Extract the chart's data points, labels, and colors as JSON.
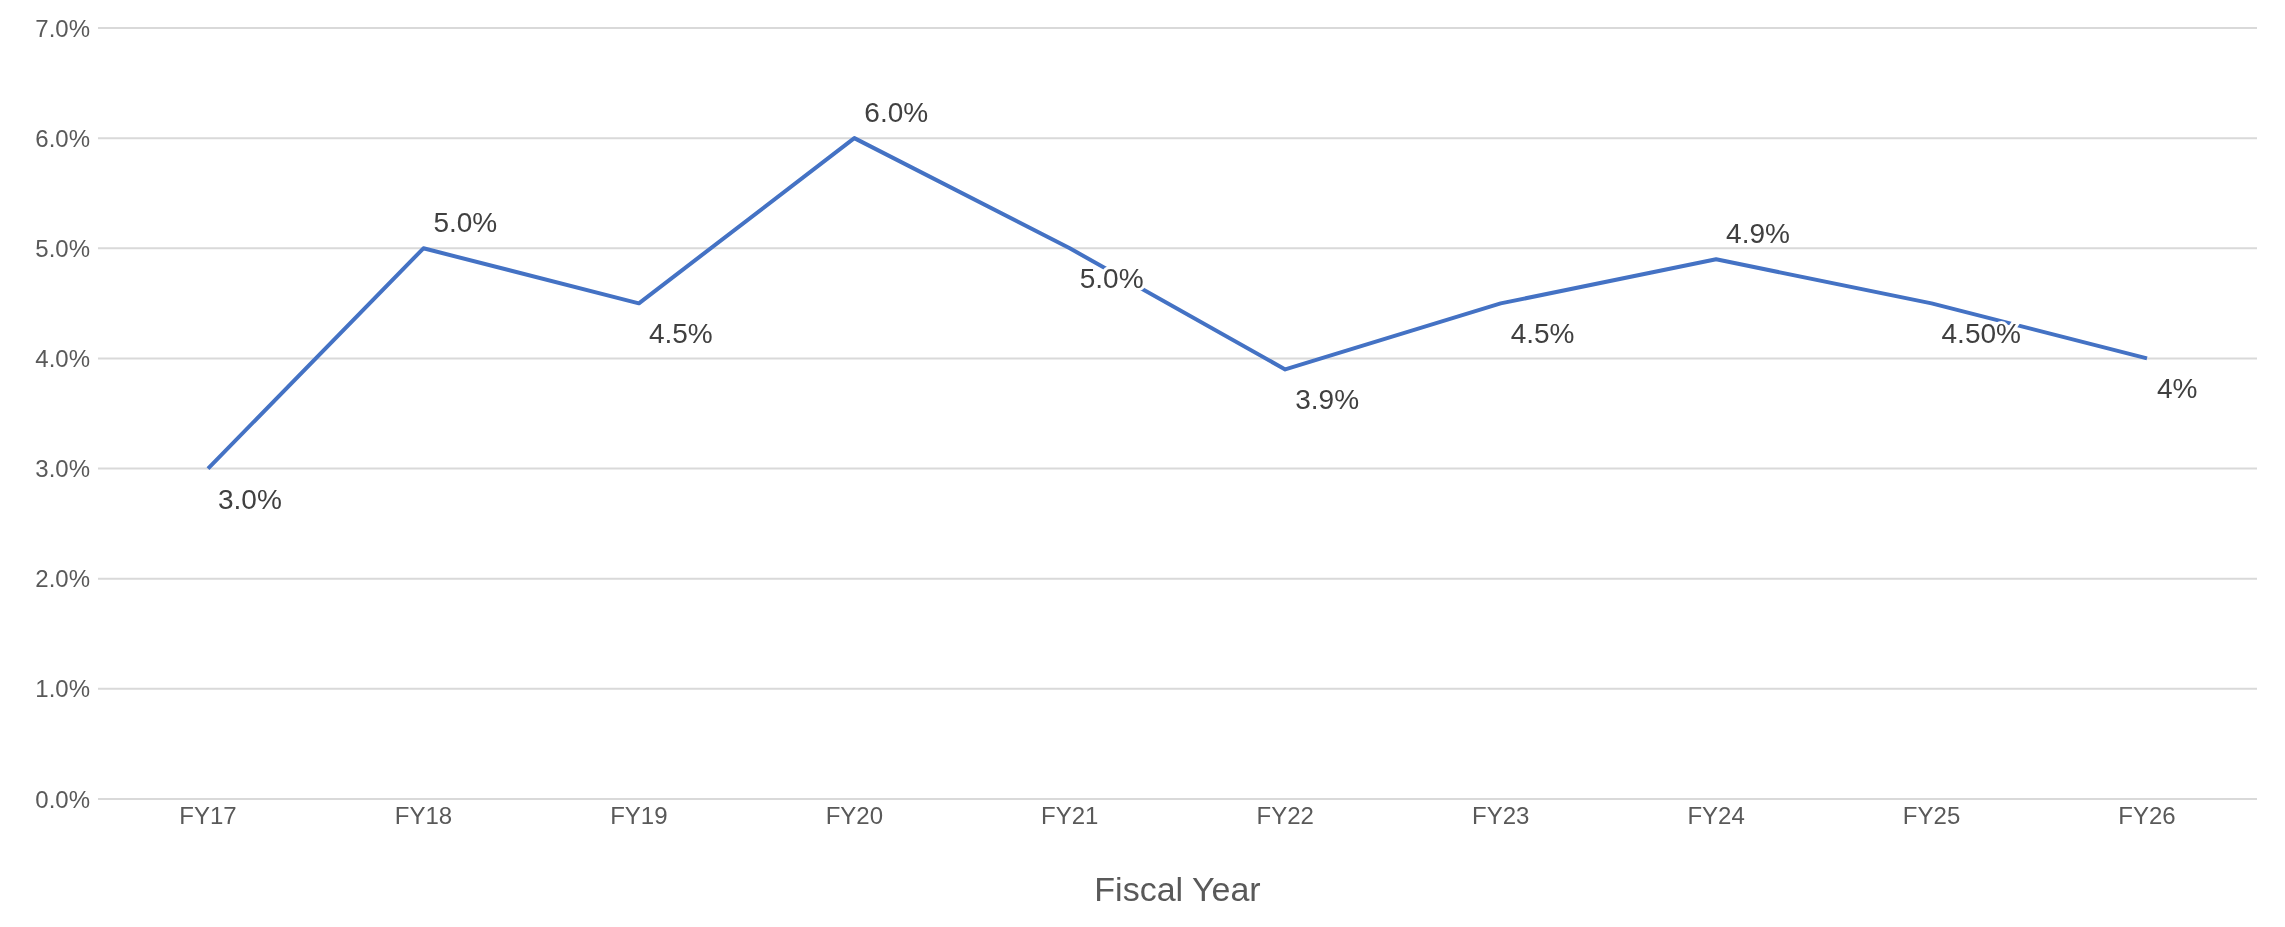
{
  "chart_data": {
    "type": "line",
    "xlabel": "Fiscal Year",
    "categories": [
      "FY17",
      "FY18",
      "FY19",
      "FY20",
      "FY21",
      "FY22",
      "FY23",
      "FY24",
      "FY25",
      "FY26"
    ],
    "values": [
      3.0,
      5.0,
      4.5,
      6.0,
      5.0,
      3.9,
      4.5,
      4.9,
      4.5,
      4.0
    ],
    "value_labels": [
      "3.0%",
      "5.0%",
      "4.5%",
      "6.0%",
      "5.0%",
      "3.9%",
      "4.5%",
      "4.9%",
      "4.50%",
      "4%"
    ],
    "color": "#4472c4",
    "marker": "none",
    "grid": "y",
    "ylim": [
      0,
      7
    ],
    "yticks": [
      {
        "value": 0,
        "label": "0.0%"
      },
      {
        "value": 1,
        "label": "1.0%"
      },
      {
        "value": 2,
        "label": "2.0%"
      },
      {
        "value": 3,
        "label": "3.0%"
      },
      {
        "value": 4,
        "label": "4.0%"
      },
      {
        "value": 5,
        "label": "5.0%"
      },
      {
        "value": 6,
        "label": "6.0%"
      },
      {
        "value": 7,
        "label": "7.0%"
      }
    ]
  }
}
